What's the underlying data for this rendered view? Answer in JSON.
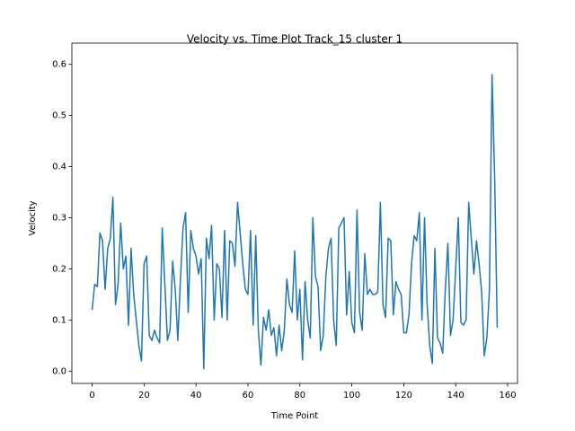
{
  "chart_data": {
    "type": "line",
    "title": "Velocity vs. Time Plot Track_15 cluster 1",
    "x_label": "Time Point",
    "y_label": "Velocity",
    "color": "#1f77b4",
    "grid": false,
    "xlim": [
      -7.8,
      163.8
    ],
    "ylim": [
      -0.024,
      0.624
    ],
    "xticks": [
      0,
      20,
      40,
      60,
      80,
      100,
      120,
      140,
      160
    ],
    "yticks": [
      {
        "value": 0,
        "label": "0.0"
      },
      0.1,
      0.2,
      0.3,
      0.4,
      0.5,
      0.6
    ],
    "x": [
      0,
      1,
      2,
      3,
      4,
      5,
      6,
      7,
      8,
      9,
      10,
      11,
      12,
      13,
      14,
      15,
      16,
      17,
      18,
      19,
      20,
      21,
      22,
      23,
      24,
      25,
      26,
      27,
      28,
      29,
      30,
      31,
      32,
      33,
      34,
      35,
      36,
      37,
      38,
      39,
      40,
      41,
      42,
      43,
      44,
      45,
      46,
      47,
      48,
      49,
      50,
      51,
      52,
      53,
      54,
      55,
      56,
      57,
      58,
      59,
      60,
      61,
      62,
      63,
      64,
      65,
      66,
      67,
      68,
      69,
      70,
      71,
      72,
      73,
      74,
      75,
      76,
      77,
      78,
      79,
      80,
      81,
      82,
      83,
      84,
      85,
      86,
      87,
      88,
      89,
      90,
      91,
      92,
      93,
      94,
      95,
      96,
      97,
      98,
      99,
      100,
      101,
      102,
      103,
      104,
      105,
      106,
      107,
      108,
      109,
      110,
      111,
      112,
      113,
      114,
      115,
      116,
      117,
      118,
      119,
      120,
      121,
      122,
      123,
      124,
      125,
      126,
      127,
      128,
      129,
      130,
      131,
      132,
      133,
      134,
      135,
      136,
      137,
      138,
      139,
      140,
      141,
      142,
      143,
      144,
      145,
      146,
      147,
      148,
      149,
      150,
      151,
      152,
      153,
      154,
      155,
      156
    ],
    "values": [
      0.12,
      0.17,
      0.165,
      0.27,
      0.255,
      0.16,
      0.24,
      0.26,
      0.34,
      0.13,
      0.17,
      0.29,
      0.2,
      0.225,
      0.09,
      0.24,
      0.15,
      0.1,
      0.05,
      0.02,
      0.21,
      0.225,
      0.07,
      0.06,
      0.08,
      0.065,
      0.055,
      0.28,
      0.17,
      0.06,
      0.08,
      0.215,
      0.16,
      0.06,
      0.18,
      0.28,
      0.31,
      0.115,
      0.275,
      0.24,
      0.225,
      0.19,
      0.22,
      0.005,
      0.26,
      0.22,
      0.285,
      0.1,
      0.21,
      0.2,
      0.105,
      0.275,
      0.1,
      0.255,
      0.25,
      0.205,
      0.33,
      0.27,
      0.21,
      0.16,
      0.15,
      0.275,
      0.09,
      0.265,
      0.08,
      0.012,
      0.105,
      0.08,
      0.12,
      0.07,
      0.085,
      0.03,
      0.09,
      0.04,
      0.08,
      0.18,
      0.13,
      0.115,
      0.235,
      0.1,
      0.16,
      0.022,
      0.175,
      0.1,
      0.065,
      0.3,
      0.185,
      0.165,
      0.04,
      0.07,
      0.185,
      0.24,
      0.26,
      0.1,
      0.05,
      0.28,
      0.29,
      0.3,
      0.11,
      0.195,
      0.095,
      0.075,
      0.315,
      0.115,
      0.08,
      0.23,
      0.15,
      0.16,
      0.15,
      0.15,
      0.155,
      0.33,
      0.13,
      0.105,
      0.26,
      0.255,
      0.11,
      0.175,
      0.16,
      0.15,
      0.075,
      0.075,
      0.11,
      0.21,
      0.265,
      0.255,
      0.31,
      0.1,
      0.3,
      0.13,
      0.05,
      0.015,
      0.24,
      0.065,
      0.055,
      0.035,
      0.16,
      0.25,
      0.07,
      0.1,
      0.2,
      0.3,
      0.095,
      0.09,
      0.1,
      0.33,
      0.26,
      0.19,
      0.255,
      0.21,
      0.155,
      0.03,
      0.065,
      0.16,
      0.58,
      0.38,
      0.085
    ]
  }
}
